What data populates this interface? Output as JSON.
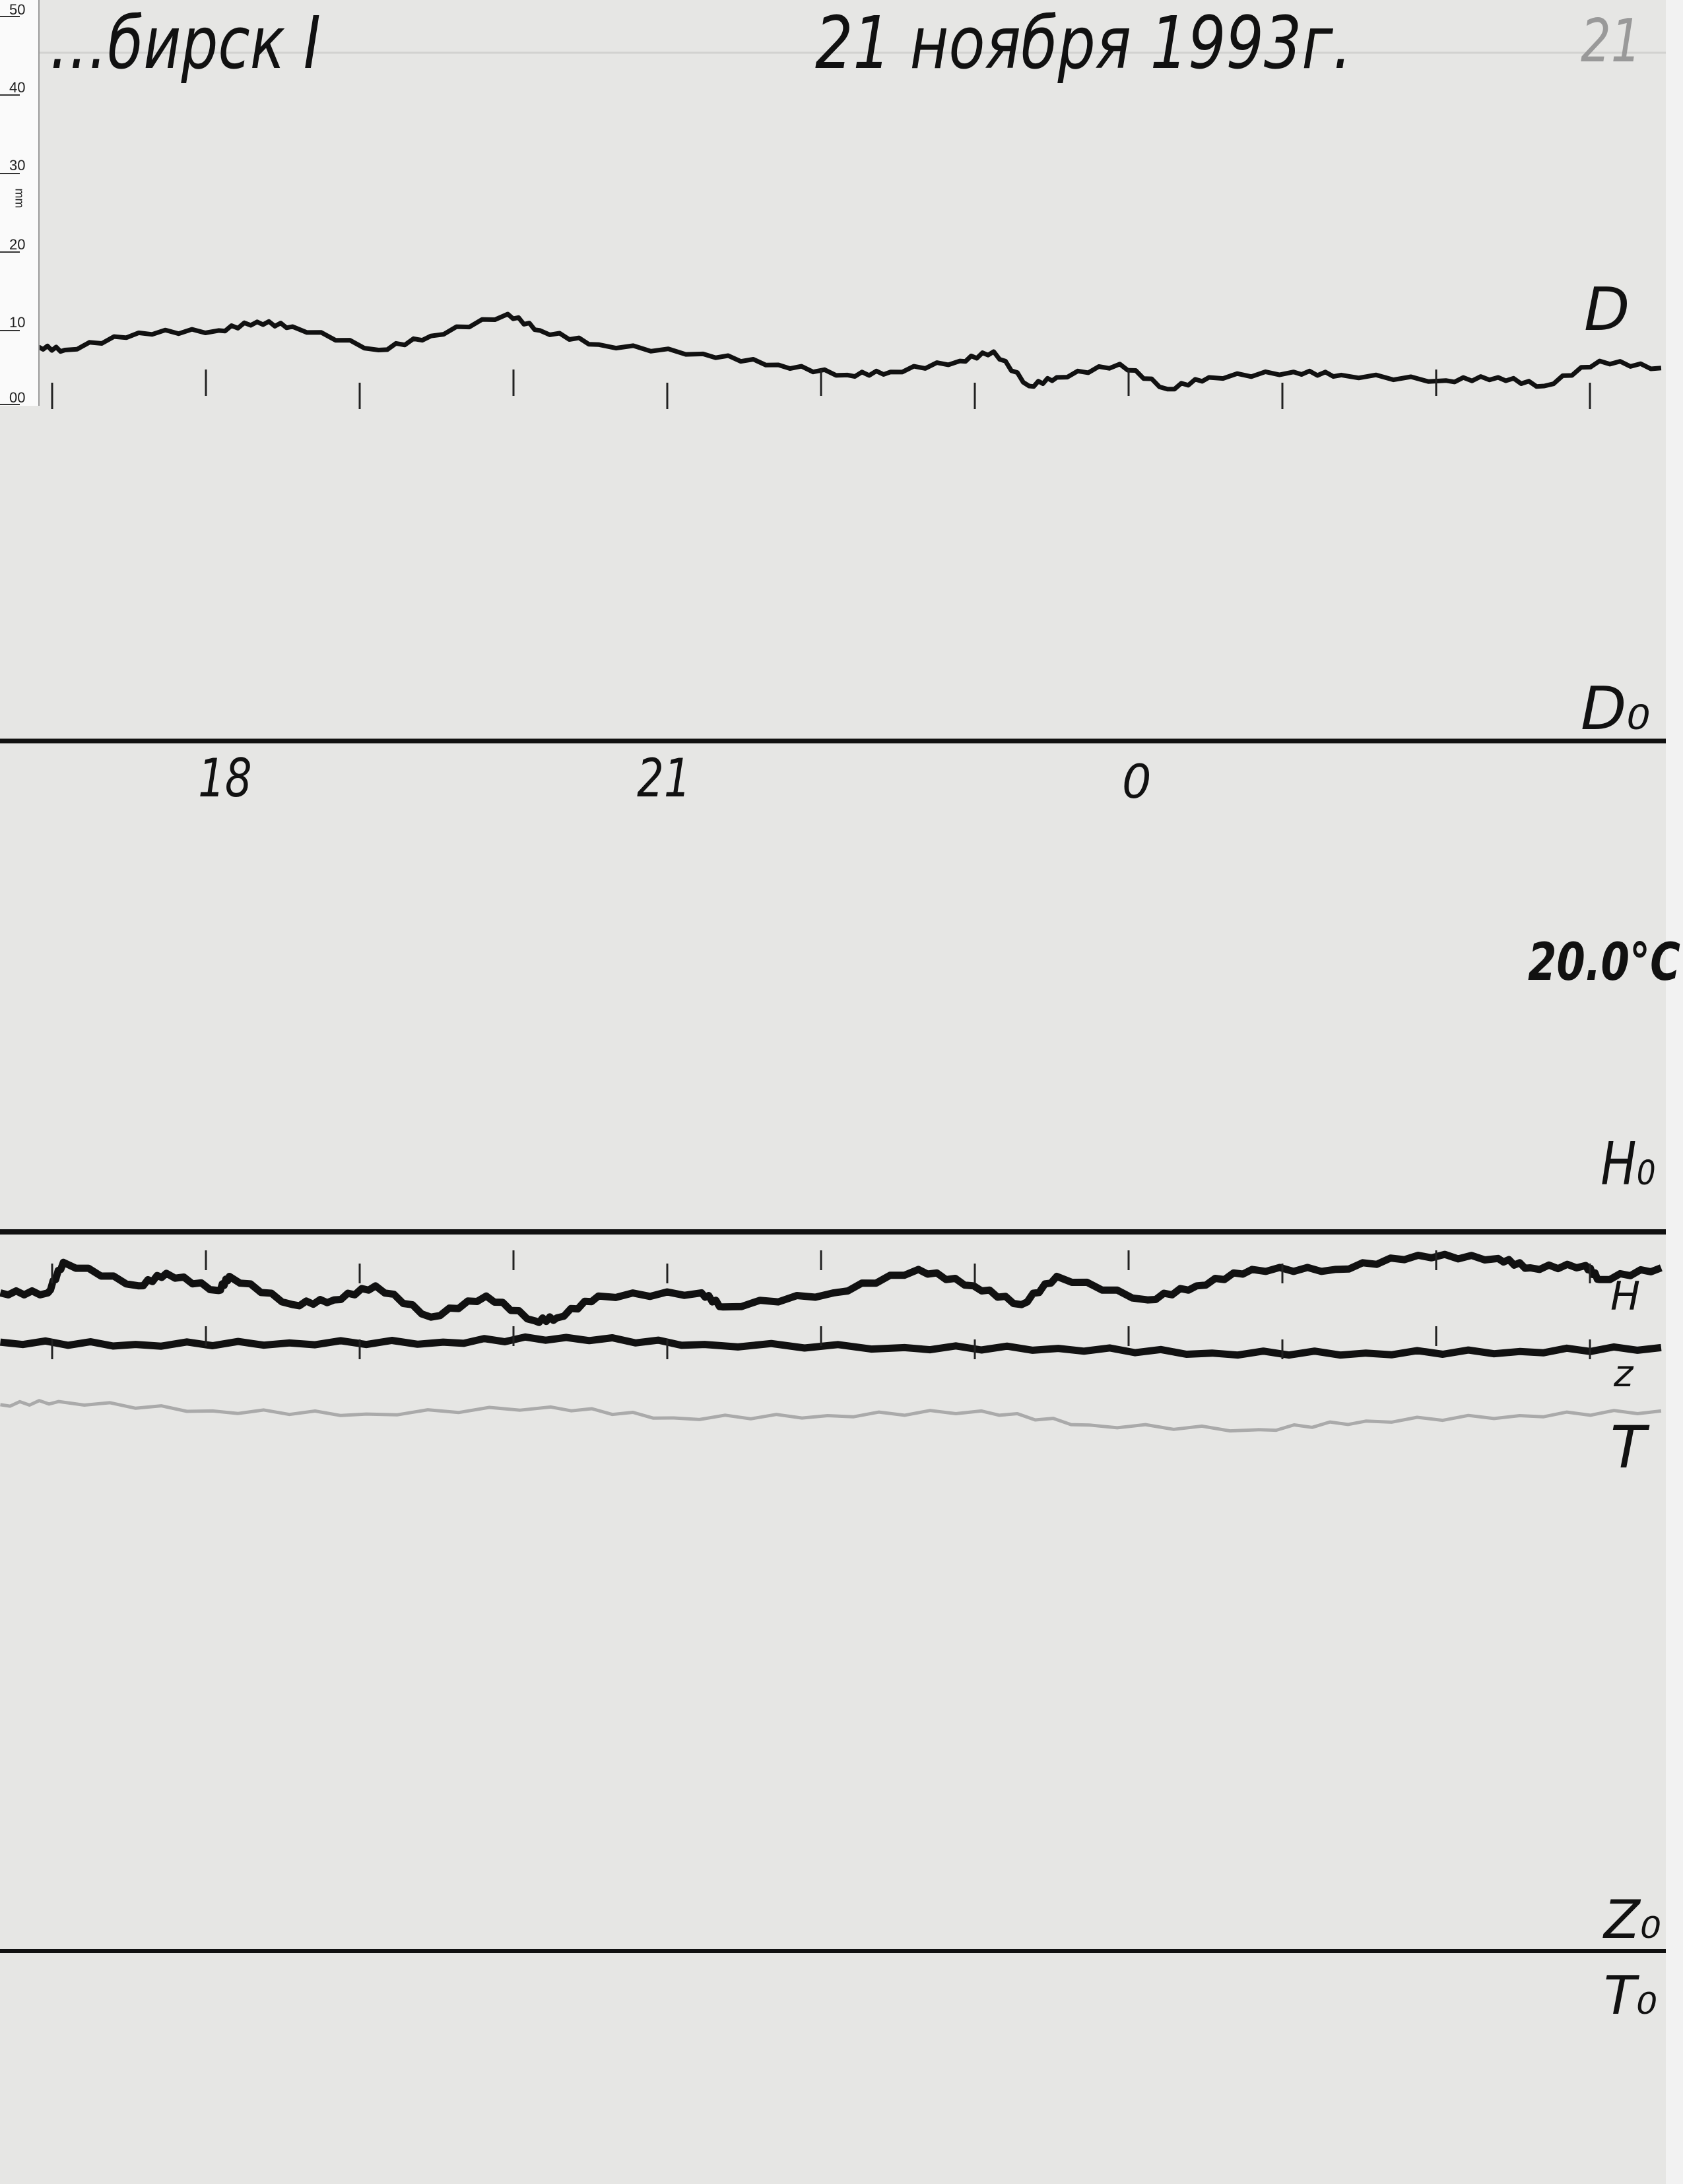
{
  "header": {
    "station": "…бирск I",
    "date": "21 ноября 1993г.",
    "sheet_number": "21"
  },
  "ruler": {
    "unit": "mm",
    "labels": [
      "50",
      "40",
      "30",
      "20",
      "10",
      "00"
    ]
  },
  "labels": {
    "D": "D",
    "D0": "D₀",
    "temperature": "20.0°C",
    "H0": "H₀",
    "H": "H",
    "z": "z",
    "T": "T",
    "Z0": "Z₀",
    "T0": "T₀"
  },
  "chart_data": {
    "type": "line",
    "title": "",
    "xlabel": "",
    "ylabel": "",
    "x_unit": "hour",
    "x_tick_labels": [
      "18",
      "21",
      "0"
    ],
    "x_range_hours": [
      16.6,
      3.4
    ],
    "hour_marks": "every hour",
    "grid": false,
    "series": [
      {
        "name": "D",
        "baseline": "D₀",
        "direction": "mm above baseline",
        "color": "#111111",
        "x": [
          16.87,
          17.04,
          17.52,
          18.04,
          18.29,
          18.52,
          19.08,
          19.42,
          19.92,
          20.13,
          20.51,
          21.19,
          21.68,
          22.13,
          22.41,
          22.86,
          23.08,
          23.31,
          23.49,
          23.9,
          0.21,
          0.48,
          1.03,
          1.34,
          2.02,
          2.36,
          2.66,
          3.02,
          3.42
        ],
        "y": [
          50.4,
          50.0,
          52.2,
          52.5,
          53.6,
          53.0,
          50.0,
          51.8,
          54.6,
          52.5,
          50.7,
          49.5,
          48.1,
          46.8,
          47.2,
          48.6,
          49.8,
          45.4,
          46.5,
          48.2,
          45.0,
          46.5,
          47.2,
          46.8,
          46.1,
          46.5,
          45.4,
          48.6,
          47.7
        ]
      },
      {
        "name": "H",
        "baseline": "H₀",
        "direction": "mm below baseline",
        "color": "#111111",
        "x": [
          16.62,
          16.93,
          17.03,
          17.52,
          17.7,
          18.04,
          18.11,
          18.52,
          18.79,
          19.06,
          19.42,
          19.78,
          20.1,
          20.24,
          20.51,
          21.18,
          21.32,
          22.04,
          22.59,
          22.95,
          23.26,
          23.49,
          0.08,
          0.4,
          0.76,
          1.3,
          1.84,
          2.36,
          2.57,
          2.93,
          3.02,
          3.42
        ],
        "y": [
          7.8,
          7.8,
          3.9,
          6.9,
          5.3,
          7.5,
          5.7,
          9.3,
          8.7,
          6.9,
          10.9,
          8.2,
          11.4,
          11.0,
          8.2,
          7.8,
          9.6,
          7.8,
          4.8,
          6.9,
          9.3,
          5.7,
          8.7,
          6.9,
          4.8,
          4.8,
          3.0,
          3.4,
          4.6,
          4.3,
          6.1,
          4.6
        ]
      },
      {
        "name": "z",
        "baseline": "H₀",
        "direction": "mm below baseline",
        "color": "#111111",
        "x": [
          16.62,
          17.5,
          18.5,
          19.5,
          20.3,
          21.2,
          22.5,
          23.5,
          0.5,
          1.5,
          2.5,
          3.42
        ],
        "y": [
          14.1,
          14.4,
          14.2,
          14.1,
          13.5,
          14.4,
          14.8,
          14.9,
          15.5,
          15.5,
          15.3,
          14.8
        ]
      },
      {
        "name": "T",
        "baseline": "H₀",
        "direction": "mm below baseline",
        "color": "#aaaaaa",
        "x": [
          16.62,
          17.0,
          18.0,
          19.0,
          20.2,
          21.0,
          22.0,
          23.0,
          23.7,
          0.8,
          1.5,
          2.5,
          3.42
        ],
        "y": [
          22.1,
          21.7,
          22.9,
          23.3,
          22.4,
          23.8,
          23.5,
          22.9,
          24.7,
          25.3,
          24.2,
          23.5,
          22.9
        ]
      }
    ]
  }
}
